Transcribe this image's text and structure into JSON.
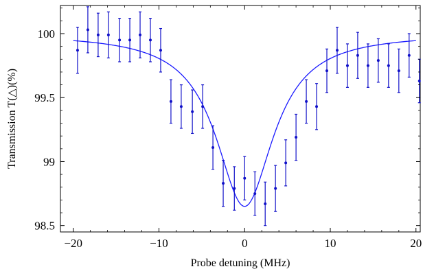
{
  "chart_data": {
    "type": "scatter",
    "title": "",
    "xlabel": "Probe detuning (MHz)",
    "ylabel": "Transmission  T(△)(%)",
    "xlim": [
      -21.5,
      20.5
    ],
    "ylim": [
      98.45,
      100.22
    ],
    "x_ticks": [
      -20,
      -10,
      0,
      10,
      20
    ],
    "y_ticks": [
      98.5,
      99,
      99.5,
      100
    ],
    "y_tick_labels": [
      "98.5",
      "99",
      "99.5",
      "100"
    ],
    "grid": false,
    "legend": "none",
    "colors": {
      "data": "#1010c8",
      "fit": "#1a1aff",
      "axes": "#000000"
    },
    "series": [
      {
        "kind": "points_with_error_bars",
        "points": [
          {
            "x": -19.5,
            "y": 99.87,
            "err": 0.18
          },
          {
            "x": -18.3,
            "y": 100.03,
            "err": 0.18
          },
          {
            "x": -17.1,
            "y": 99.99,
            "err": 0.17
          },
          {
            "x": -15.9,
            "y": 99.99,
            "err": 0.18
          },
          {
            "x": -14.6,
            "y": 99.95,
            "err": 0.17
          },
          {
            "x": -13.4,
            "y": 99.95,
            "err": 0.17
          },
          {
            "x": -12.2,
            "y": 99.99,
            "err": 0.18
          },
          {
            "x": -11.0,
            "y": 99.95,
            "err": 0.17
          },
          {
            "x": -9.8,
            "y": 99.87,
            "err": 0.17
          },
          {
            "x": -8.6,
            "y": 99.47,
            "err": 0.17
          },
          {
            "x": -7.4,
            "y": 99.43,
            "err": 0.17
          },
          {
            "x": -6.1,
            "y": 99.39,
            "err": 0.17
          },
          {
            "x": -4.9,
            "y": 99.43,
            "err": 0.17
          },
          {
            "x": -3.7,
            "y": 99.11,
            "err": 0.17
          },
          {
            "x": -2.5,
            "y": 98.83,
            "err": 0.18
          },
          {
            "x": -1.2,
            "y": 98.79,
            "err": 0.17
          },
          {
            "x": 0.0,
            "y": 98.87,
            "err": 0.17
          },
          {
            "x": 1.2,
            "y": 98.75,
            "err": 0.17
          },
          {
            "x": 2.4,
            "y": 98.67,
            "err": 0.17
          },
          {
            "x": 3.6,
            "y": 98.79,
            "err": 0.18
          },
          {
            "x": 4.8,
            "y": 98.99,
            "err": 0.18
          },
          {
            "x": 6.0,
            "y": 99.19,
            "err": 0.18
          },
          {
            "x": 7.2,
            "y": 99.47,
            "err": 0.17
          },
          {
            "x": 8.4,
            "y": 99.43,
            "err": 0.18
          },
          {
            "x": 9.6,
            "y": 99.71,
            "err": 0.17
          },
          {
            "x": 10.8,
            "y": 99.87,
            "err": 0.18
          },
          {
            "x": 12.0,
            "y": 99.75,
            "err": 0.17
          },
          {
            "x": 13.2,
            "y": 99.83,
            "err": 0.18
          },
          {
            "x": 14.4,
            "y": 99.75,
            "err": 0.17
          },
          {
            "x": 15.6,
            "y": 99.79,
            "err": 0.17
          },
          {
            "x": 16.8,
            "y": 99.75,
            "err": 0.17
          },
          {
            "x": 18.0,
            "y": 99.71,
            "err": 0.17
          },
          {
            "x": 19.2,
            "y": 99.83,
            "err": 0.17
          },
          {
            "x": 20.4,
            "y": 99.63,
            "err": 0.17
          }
        ]
      },
      {
        "kind": "fit_curve",
        "model": "lorentzian",
        "baseline": 100,
        "depth": 1.35,
        "center": 0,
        "hwhm": 4.1
      }
    ]
  }
}
